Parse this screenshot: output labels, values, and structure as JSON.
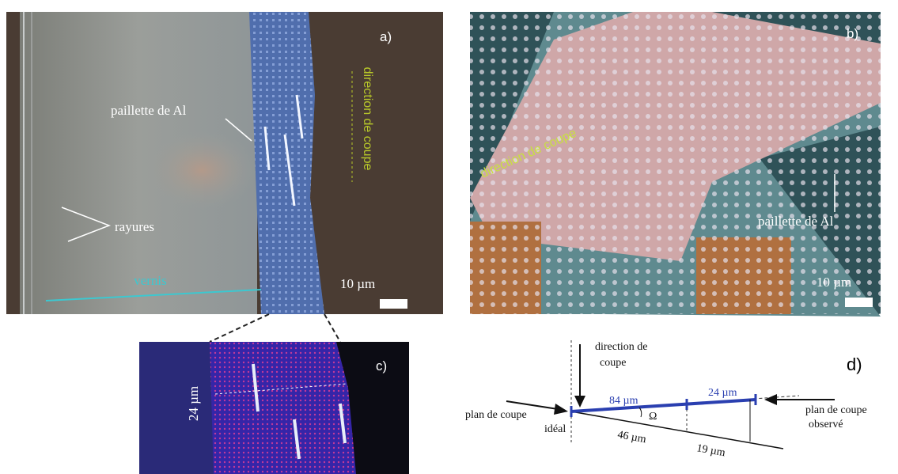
{
  "panels": {
    "a": {
      "label": "a)",
      "cut_direction": "direction de coupe",
      "flake": "paillette  de Al",
      "scratches": "rayures",
      "varnish": "vernis",
      "scale": "10 µm"
    },
    "b": {
      "label": "b)",
      "cut_direction": "direction de coupe",
      "flake": "paillette  de Al",
      "scale": "10 µm"
    },
    "c": {
      "label": "c)",
      "width": "24 µm"
    },
    "d": {
      "label": "d)",
      "cut_direction": [
        "direction  de",
        "coupe"
      ],
      "len_a": "84 µm",
      "len_b": "24 µm",
      "angle": "Ω",
      "ideal_plane": [
        "plan  de coupe",
        "idéal"
      ],
      "proj_a": "46 µm",
      "proj_b": "19 µm",
      "observed_plane": [
        "plan de coupe",
        "observé"
      ]
    }
  }
}
